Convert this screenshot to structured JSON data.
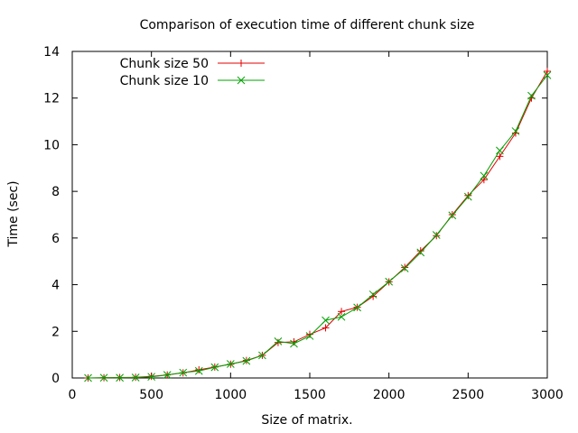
{
  "chart_data": {
    "type": "line",
    "title": "Comparison of execution time of different chunk size",
    "xlabel": "Size of matrix.",
    "ylabel": "Time (sec)",
    "xlim": [
      0,
      3000
    ],
    "ylim": [
      0,
      14
    ],
    "xticks": [
      0,
      500,
      1000,
      1500,
      2000,
      2500,
      3000
    ],
    "yticks": [
      0,
      2,
      4,
      6,
      8,
      10,
      12,
      14
    ],
    "grid": false,
    "legend_position": "top-left",
    "x": [
      100,
      200,
      300,
      400,
      500,
      600,
      700,
      800,
      900,
      1000,
      1100,
      1200,
      1300,
      1400,
      1500,
      1600,
      1700,
      1800,
      1900,
      2000,
      2100,
      2200,
      2300,
      2400,
      2500,
      2600,
      2700,
      2800,
      2900,
      3000
    ],
    "series": [
      {
        "name": "Chunk size 50",
        "color": "#e00000",
        "marker": "plus",
        "values": [
          0.0,
          0.01,
          0.02,
          0.03,
          0.07,
          0.13,
          0.22,
          0.35,
          0.47,
          0.59,
          0.75,
          0.97,
          1.52,
          1.55,
          1.87,
          2.15,
          2.85,
          3.03,
          3.5,
          4.12,
          4.74,
          5.45,
          6.1,
          7.0,
          7.82,
          8.5,
          9.5,
          10.5,
          12.0,
          13.15
        ]
      },
      {
        "name": "Chunk size 10",
        "color": "#00a000",
        "marker": "x",
        "values": [
          0.0,
          0.01,
          0.01,
          0.02,
          0.05,
          0.13,
          0.23,
          0.3,
          0.46,
          0.6,
          0.73,
          0.97,
          1.57,
          1.47,
          1.8,
          2.47,
          2.62,
          3.02,
          3.58,
          4.13,
          4.7,
          5.38,
          6.13,
          6.97,
          7.77,
          8.67,
          9.75,
          10.58,
          12.1,
          12.98
        ]
      }
    ]
  }
}
